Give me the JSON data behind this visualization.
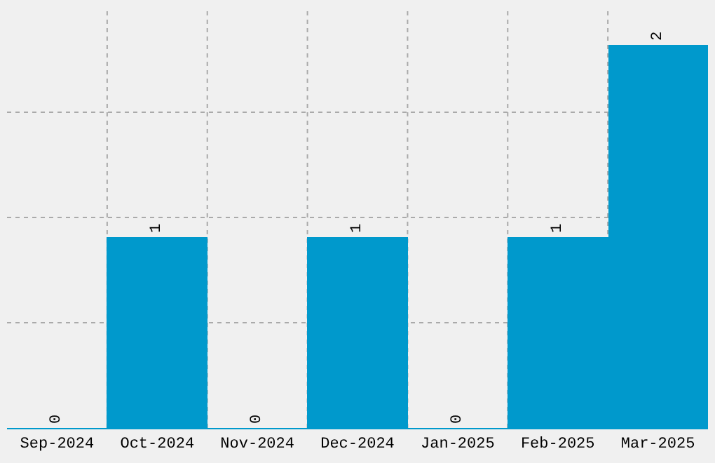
{
  "chart_data": {
    "type": "bar",
    "categories": [
      "Sep-2024",
      "Oct-2024",
      "Nov-2024",
      "Dec-2024",
      "Jan-2025",
      "Feb-2025",
      "Mar-2025"
    ],
    "values": [
      0,
      1,
      0,
      1,
      0,
      1,
      2
    ],
    "color": "#0099cc",
    "ylim": [
      0,
      2.2
    ],
    "yticks": [
      {
        "value": 0,
        "label": null
      },
      {
        "value": 0.55,
        "label": null
      },
      {
        "value": 1.1,
        "label": null
      },
      {
        "value": 1.65,
        "label": null
      }
    ],
    "grid": true,
    "tick_labels": "x",
    "data_labels": true
  }
}
